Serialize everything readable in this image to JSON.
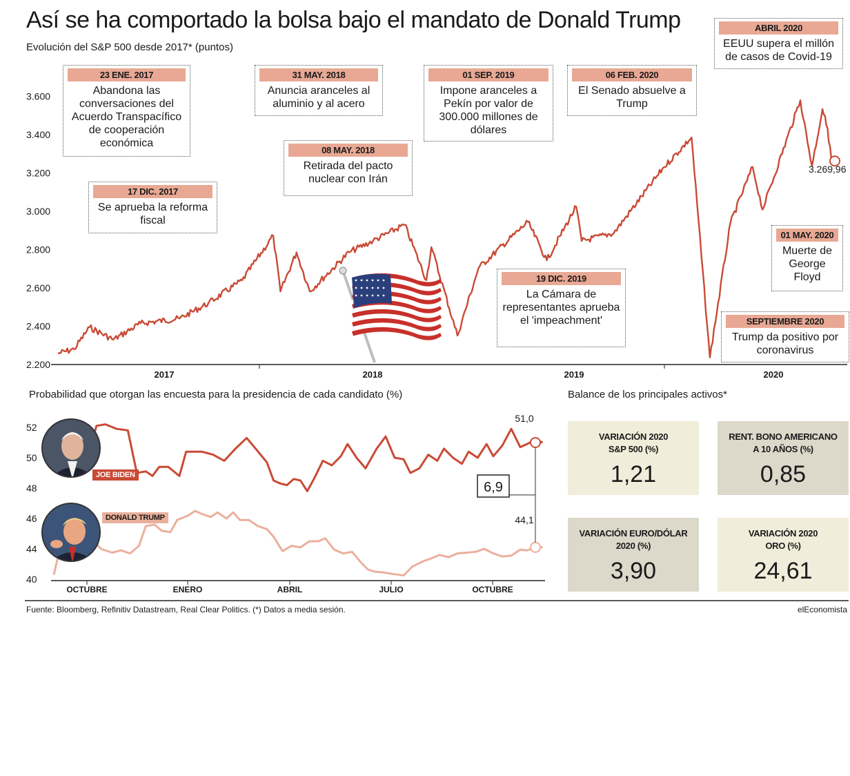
{
  "title": "Así se ha comportado la bolsa bajo el mandato de Donald Trump",
  "subtitle": "Evolución del S&P 500 desde 2017* (puntos)",
  "events": [
    {
      "date": "23 ENE. 2017",
      "text": "Abandona las conversaciones del Acuerdo Transpacífico de cooperación económica"
    },
    {
      "date": "17 DIC. 2017",
      "text": "Se aprueba la reforma fiscal"
    },
    {
      "date": "31 MAY. 2018",
      "text": "Anuncia aranceles al aluminio y al acero"
    },
    {
      "date": "08 MAY. 2018",
      "text": "Retirada del pacto nuclear con Irán"
    },
    {
      "date": "01 SEP. 2019",
      "text": "Impone aranceles a Pekín por valor de 300.000 millones de dólares"
    },
    {
      "date": "19 DIC. 2019",
      "text": "La Cámara de representantes aprueba el 'impeachment'"
    },
    {
      "date": "06 FEB. 2020",
      "text": "El Senado absuelve a Trump"
    },
    {
      "date": "ABRIL 2020",
      "text": "EEUU supera el millón de casos de Covid-19"
    },
    {
      "date": "01 MAY. 2020",
      "text": "Muerte de George Floyd"
    },
    {
      "date": "SEPTIEMBRE 2020",
      "text": "Trump da positivo por coronavirus"
    }
  ],
  "poll_title": "Probabilidad que otorgan las encuesta para la presidencia de cada candidato (%)",
  "assets_title": "Balance de los principales activos*",
  "candidates": {
    "biden": "JOE BIDEN",
    "trump": "DONALD TRUMP"
  },
  "poll_gap": "6,9",
  "cards": [
    {
      "label1": "VARIACIÓN 2020",
      "label2": "S&P 500 (%)",
      "value": "1,21",
      "bg": "#f0edda"
    },
    {
      "label1": "RENT. BONO AMERICANO",
      "label2": "A 10 AÑOS (%)",
      "value": "0,85",
      "bg": "#dcd8ca"
    },
    {
      "label1": "VARIACIÓN EURO/DÓLAR",
      "label2": "2020 (%)",
      "value": "3,90",
      "bg": "#dcd8ca"
    },
    {
      "label1": "VARIACIÓN 2020",
      "label2": "ORO (%)",
      "value": "24,61",
      "bg": "#f0edda"
    }
  ],
  "source": "Fuente: Bloomberg, Refinitiv Datastream, Real Clear Politics. (*) Datos a media sesión.",
  "brand": "elEconomista",
  "colors": {
    "sp_line": "#c94a35",
    "biden": "#c94a35",
    "trump": "#eab09c",
    "label_bg": "#e8a894"
  },
  "chart_data": [
    {
      "type": "line",
      "title": "Evolución del S&P 500 desde 2017* (puntos)",
      "ylim": [
        2200,
        3700
      ],
      "yticks": [
        "2.200",
        "2.400",
        "2.600",
        "2.800",
        "3.000",
        "3.200",
        "3.400",
        "3.600"
      ],
      "xticks": [
        "2017",
        "2018",
        "2019",
        "2020"
      ],
      "last_label": "3.269,96",
      "series": [
        {
          "name": "",
          "points": [
            [
              "2017-01-03",
              2258
            ],
            [
              "2017-02-01",
              2280
            ],
            [
              "2017-03-01",
              2395
            ],
            [
              "2017-04-13",
              2330
            ],
            [
              "2017-06-01",
              2415
            ],
            [
              "2017-08-10",
              2440
            ],
            [
              "2017-10-01",
              2520
            ],
            [
              "2017-12-01",
              2640
            ],
            [
              "2018-01-26",
              2873
            ],
            [
              "2018-02-08",
              2582
            ],
            [
              "2018-03-09",
              2786
            ],
            [
              "2018-04-02",
              2582
            ],
            [
              "2018-06-12",
              2787
            ],
            [
              "2018-07-25",
              2846
            ],
            [
              "2018-09-20",
              2930
            ],
            [
              "2018-10-29",
              2641
            ],
            [
              "2018-11-07",
              2813
            ],
            [
              "2018-12-24",
              2351
            ],
            [
              "2019-01-31",
              2704
            ],
            [
              "2019-04-30",
              2945
            ],
            [
              "2019-06-03",
              2744
            ],
            [
              "2019-07-26",
              3025
            ],
            [
              "2019-08-05",
              2845
            ],
            [
              "2019-10-02",
              2887
            ],
            [
              "2019-12-31",
              3230
            ],
            [
              "2020-02-19",
              3386
            ],
            [
              "2020-03-23",
              2237
            ],
            [
              "2020-04-29",
              2939
            ],
            [
              "2020-06-08",
              3232
            ],
            [
              "2020-06-26",
              3009
            ],
            [
              "2020-09-02",
              3580
            ],
            [
              "2020-09-23",
              3237
            ],
            [
              "2020-10-12",
              3534
            ],
            [
              "2020-10-21",
              3435
            ],
            [
              "2020-10-28",
              3270
            ]
          ]
        }
      ]
    },
    {
      "type": "line",
      "title": "Probabilidad que otorgan las encuesta para la presidencia de cada candidato (%)",
      "ylim": [
        40,
        53
      ],
      "yticks": [
        "40",
        "44",
        "46",
        "48",
        "50",
        "52"
      ],
      "xticks": [
        "OCTUBRE",
        "ENERO",
        "ABRIL",
        "JULIO",
        "OCTUBRE"
      ],
      "series": [
        {
          "name": "JOE BIDEN",
          "last_label": "51,0",
          "points": [
            [
              0,
              50.6
            ],
            [
              0.7,
              49.6
            ],
            [
              1.1,
              50.2
            ],
            [
              1.5,
              49.9
            ],
            [
              1.9,
              52.1
            ],
            [
              2.3,
              52.2
            ],
            [
              2.8,
              51.9
            ],
            [
              3.3,
              51.8
            ],
            [
              3.7,
              49.0
            ],
            [
              4.1,
              49.1
            ],
            [
              4.4,
              48.8
            ],
            [
              4.7,
              49.4
            ],
            [
              5.1,
              49.4
            ],
            [
              5.6,
              48.8
            ],
            [
              5.9,
              50.4
            ],
            [
              6.6,
              50.4
            ],
            [
              7.1,
              50.2
            ],
            [
              7.6,
              49.8
            ],
            [
              8.1,
              50.6
            ],
            [
              8.6,
              51.3
            ],
            [
              9.0,
              50.6
            ],
            [
              9.5,
              49.7
            ],
            [
              9.8,
              48.5
            ],
            [
              10.1,
              48.3
            ],
            [
              10.4,
              48.2
            ],
            [
              10.7,
              48.6
            ],
            [
              11.0,
              48.5
            ],
            [
              11.3,
              47.8
            ],
            [
              11.6,
              48.6
            ],
            [
              12.0,
              49.8
            ],
            [
              12.4,
              49.5
            ],
            [
              12.8,
              50.1
            ],
            [
              13.1,
              50.9
            ],
            [
              13.5,
              50.0
            ],
            [
              13.9,
              49.3
            ],
            [
              14.4,
              50.6
            ],
            [
              14.8,
              51.4
            ],
            [
              15.2,
              50.0
            ],
            [
              15.6,
              49.9
            ],
            [
              15.9,
              49.0
            ],
            [
              16.3,
              49.3
            ],
            [
              16.7,
              50.2
            ],
            [
              17.1,
              49.8
            ],
            [
              17.4,
              50.6
            ],
            [
              17.8,
              50.0
            ],
            [
              18.2,
              49.6
            ],
            [
              18.5,
              50.4
            ],
            [
              18.9,
              50.0
            ],
            [
              19.3,
              50.9
            ],
            [
              19.6,
              50.1
            ],
            [
              20.0,
              50.8
            ],
            [
              20.4,
              51.9
            ],
            [
              20.8,
              50.7
            ],
            [
              21.1,
              50.9
            ],
            [
              21.5,
              51.2
            ],
            [
              21.8,
              51.0
            ]
          ]
        },
        {
          "name": "DONALD TRUMP",
          "last_label": "44,1",
          "points": [
            [
              0,
              40.6
            ],
            [
              0.3,
              44.2
            ],
            [
              0.7,
              44.0
            ],
            [
              1.1,
              44.4
            ],
            [
              1.6,
              44.8
            ],
            [
              2.1,
              44.0
            ],
            [
              2.6,
              43.5
            ],
            [
              3.0,
              43.8
            ],
            [
              3.4,
              43.4
            ],
            [
              3.8,
              44.2
            ],
            [
              4.1,
              45.5
            ],
            [
              4.5,
              45.6
            ],
            [
              4.8,
              45.2
            ],
            [
              5.2,
              45.1
            ],
            [
              5.5,
              45.9
            ],
            [
              6.0,
              46.2
            ],
            [
              6.3,
              46.5
            ],
            [
              6.6,
              46.3
            ],
            [
              7.0,
              46.1
            ],
            [
              7.3,
              46.4
            ],
            [
              7.7,
              46.0
            ],
            [
              8.0,
              46.4
            ],
            [
              8.3,
              45.9
            ],
            [
              8.7,
              45.9
            ],
            [
              9.1,
              45.5
            ],
            [
              9.5,
              45.3
            ],
            [
              9.8,
              44.8
            ],
            [
              10.2,
              43.7
            ],
            [
              10.6,
              44.2
            ],
            [
              11.0,
              44.1
            ],
            [
              11.4,
              44.5
            ],
            [
              11.8,
              44.5
            ],
            [
              12.1,
              44.7
            ],
            [
              12.5,
              43.9
            ],
            [
              12.9,
              43.4
            ],
            [
              13.3,
              43.6
            ],
            [
              13.7,
              42.2
            ],
            [
              14.0,
              41.3
            ],
            [
              14.3,
              41.0
            ],
            [
              14.7,
              40.9
            ],
            [
              15.1,
              40.7
            ],
            [
              15.6,
              40.5
            ],
            [
              16.0,
              41.7
            ],
            [
              16.5,
              42.4
            ],
            [
              16.8,
              42.7
            ],
            [
              17.2,
              43.2
            ],
            [
              17.6,
              42.9
            ],
            [
              18.0,
              43.4
            ],
            [
              18.4,
              43.5
            ],
            [
              18.8,
              43.6
            ],
            [
              19.2,
              44.0
            ],
            [
              19.6,
              43.4
            ],
            [
              20.0,
              43.0
            ],
            [
              20.4,
              43.1
            ],
            [
              20.8,
              43.9
            ],
            [
              21.1,
              43.8
            ],
            [
              21.5,
              44.1
            ],
            [
              21.8,
              44.1
            ]
          ]
        }
      ]
    }
  ]
}
